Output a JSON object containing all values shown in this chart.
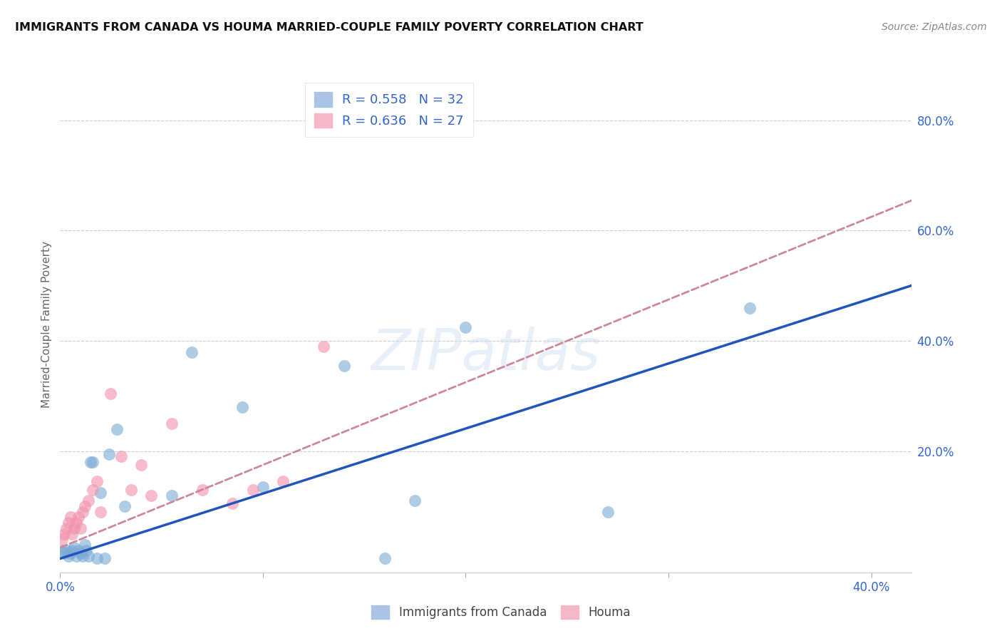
{
  "title": "IMMIGRANTS FROM CANADA VS HOUMA MARRIED-COUPLE FAMILY POVERTY CORRELATION CHART",
  "source": "Source: ZipAtlas.com",
  "ylabel": "Married-Couple Family Poverty",
  "xlim": [
    0.0,
    0.42
  ],
  "ylim": [
    -0.02,
    0.88
  ],
  "xtick_labels": [
    "0.0%",
    "",
    "",
    "",
    "40.0%"
  ],
  "xtick_vals": [
    0.0,
    0.1,
    0.2,
    0.3,
    0.4
  ],
  "right_ytick_labels": [
    "20.0%",
    "40.0%",
    "60.0%",
    "80.0%"
  ],
  "right_ytick_vals": [
    0.2,
    0.4,
    0.6,
    0.8
  ],
  "legend_entries": [
    {
      "label": "R = 0.558   N = 32",
      "color": "#aac4e8"
    },
    {
      "label": "R = 0.636   N = 27",
      "color": "#f4b8c8"
    }
  ],
  "legend_r_color": "#3366cc",
  "scatter_blue": {
    "x": [
      0.001,
      0.002,
      0.003,
      0.004,
      0.005,
      0.006,
      0.007,
      0.008,
      0.009,
      0.01,
      0.011,
      0.012,
      0.013,
      0.014,
      0.015,
      0.016,
      0.018,
      0.02,
      0.022,
      0.024,
      0.028,
      0.032,
      0.055,
      0.065,
      0.09,
      0.1,
      0.14,
      0.16,
      0.175,
      0.2,
      0.27,
      0.34
    ],
    "y": [
      0.02,
      0.015,
      0.02,
      0.01,
      0.015,
      0.02,
      0.025,
      0.01,
      0.02,
      0.015,
      0.01,
      0.03,
      0.02,
      0.01,
      0.18,
      0.18,
      0.005,
      0.125,
      0.005,
      0.195,
      0.24,
      0.1,
      0.12,
      0.38,
      0.28,
      0.135,
      0.355,
      0.005,
      0.11,
      0.425,
      0.09,
      0.46
    ]
  },
  "scatter_pink": {
    "x": [
      0.001,
      0.002,
      0.003,
      0.004,
      0.005,
      0.006,
      0.007,
      0.008,
      0.009,
      0.01,
      0.011,
      0.012,
      0.014,
      0.016,
      0.018,
      0.02,
      0.025,
      0.03,
      0.035,
      0.04,
      0.045,
      0.055,
      0.07,
      0.085,
      0.095,
      0.11,
      0.13
    ],
    "y": [
      0.04,
      0.05,
      0.06,
      0.07,
      0.08,
      0.05,
      0.06,
      0.07,
      0.08,
      0.06,
      0.09,
      0.1,
      0.11,
      0.13,
      0.145,
      0.09,
      0.305,
      0.19,
      0.13,
      0.175,
      0.12,
      0.25,
      0.13,
      0.105,
      0.13,
      0.145,
      0.39
    ]
  },
  "trendline_blue": {
    "x_start": 0.0,
    "x_end": 0.42,
    "slope": 1.18,
    "intercept": 0.005
  },
  "trendline_pink": {
    "x_start": 0.0,
    "x_end": 0.42,
    "slope": 1.5,
    "intercept": 0.025
  },
  "blue_color": "#7baad4",
  "pink_color": "#f090aa",
  "trendline_blue_color": "#2255bb",
  "trendline_pink_color": "#cc8899",
  "watermark_text": "ZIPatlas",
  "background_color": "#ffffff",
  "grid_color": "#cccccc"
}
